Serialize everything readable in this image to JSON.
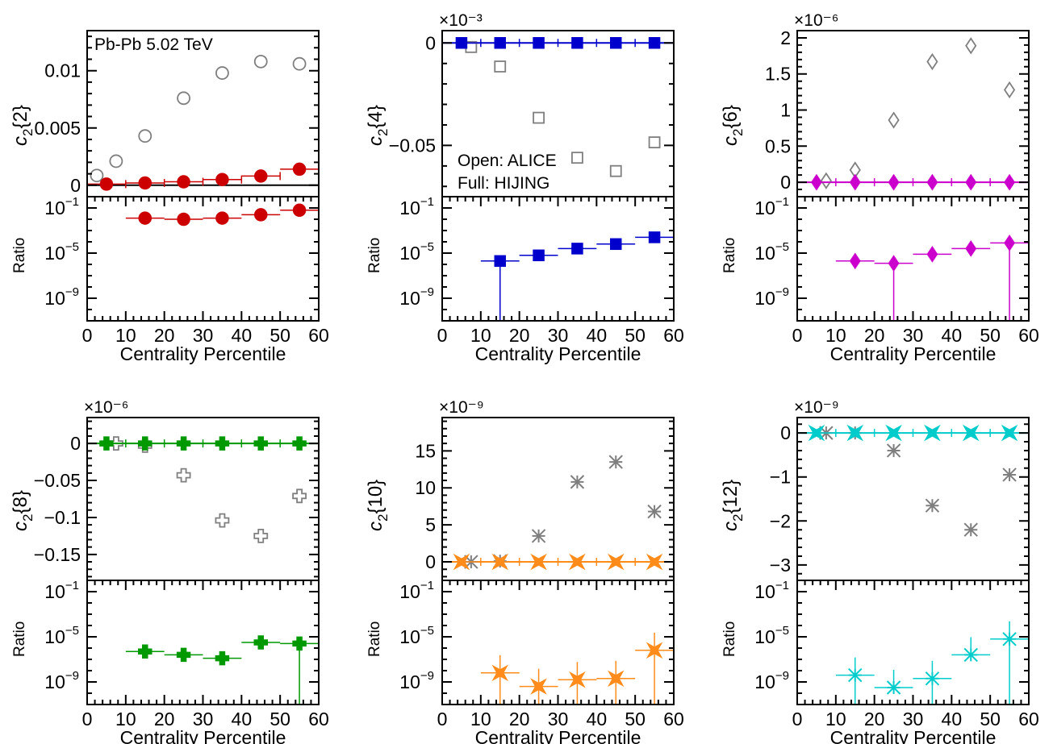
{
  "figure": {
    "system_label": "Pb-Pb 5.02 TeV",
    "legend_open": "Open: ALICE",
    "legend_full": "Full: HIJING"
  },
  "chart_data": [
    {
      "type": "scatter",
      "ylabel": "c_2{2}",
      "ratio_label": "Ratio",
      "xlabel": "Centrality Percentile",
      "multiplier_text": "",
      "xlim": [
        0,
        60
      ],
      "xticks": [
        0,
        10,
        20,
        30,
        40,
        50,
        60
      ],
      "ylim": [
        -0.001,
        0.0135
      ],
      "yticks": [
        0,
        0.005,
        0.01
      ],
      "ytick_labels": [
        "0",
        "0.005",
        "0.01"
      ],
      "ratio_ylim_exp": [
        -11,
        0
      ],
      "ratio_yticks_exp": [
        -9,
        -5,
        -1
      ],
      "zero_line": true,
      "line_color": "#000000",
      "series": [
        {
          "name": "ALICE",
          "marker": "circle-open",
          "color": "#7f7f7f",
          "x": [
            2.5,
            7.5,
            15,
            25,
            35,
            45,
            55
          ],
          "y": [
            0.00085,
            0.0021,
            0.0043,
            0.0076,
            0.0098,
            0.0108,
            0.0106
          ]
        },
        {
          "name": "HIJING",
          "marker": "circle",
          "color": "#cc0000",
          "x": [
            5,
            15,
            25,
            35,
            45,
            55
          ],
          "xerr": 5,
          "y": [
            0.0001,
            0.0002,
            0.0003,
            0.0005,
            0.0008,
            0.0014
          ]
        }
      ],
      "ratio": {
        "color": "#cc0000",
        "marker": "circle",
        "x": [
          15,
          25,
          35,
          45,
          55
        ],
        "xerr": 5,
        "log10": [
          -1.9,
          -2.0,
          -1.9,
          -1.6,
          -1.2
        ],
        "drop_to_floor": []
      }
    },
    {
      "type": "scatter",
      "ylabel": "c_2{4}",
      "ratio_label": "Ratio",
      "xlabel": "Centrality Percentile",
      "multiplier_text": "×10⁻³",
      "xlim": [
        0,
        60
      ],
      "xticks": [
        0,
        10,
        20,
        30,
        40,
        50,
        60
      ],
      "ylim": [
        -0.075,
        0.006
      ],
      "yticks": [
        -0.05,
        0
      ],
      "ytick_labels": [
        "−0.05",
        "0"
      ],
      "ratio_ylim_exp": [
        -11,
        0
      ],
      "ratio_yticks_exp": [
        -9,
        -5,
        -1
      ],
      "zero_line": true,
      "line_color": "#0000cc",
      "series": [
        {
          "name": "ALICE",
          "marker": "square-open",
          "color": "#7f7f7f",
          "x": [
            7.5,
            15,
            25,
            35,
            45,
            55
          ],
          "y": [
            -0.002,
            -0.0115,
            -0.0365,
            -0.056,
            -0.0625,
            -0.0485
          ]
        },
        {
          "name": "HIJING",
          "marker": "square",
          "color": "#0000cc",
          "x": [
            5,
            15,
            25,
            35,
            45,
            55
          ],
          "xerr": 5,
          "y": [
            0,
            0,
            0,
            0,
            0,
            0
          ]
        }
      ],
      "ratio": {
        "color": "#0000cc",
        "marker": "square",
        "x": [
          15,
          25,
          35,
          45,
          55
        ],
        "xerr": 5,
        "log10": [
          -5.7,
          -5.2,
          -4.6,
          -4.2,
          -3.6
        ],
        "drop_to_floor": [
          15
        ]
      }
    },
    {
      "type": "scatter",
      "ylabel": "c_2{6}",
      "ratio_label": "Ratio",
      "xlabel": "Centrality Percentile",
      "multiplier_text": "×10⁻⁶",
      "xlim": [
        0,
        60
      ],
      "xticks": [
        0,
        10,
        20,
        30,
        40,
        50,
        60
      ],
      "ylim": [
        -0.2,
        2.1
      ],
      "yticks": [
        0,
        0.5,
        1,
        1.5,
        2
      ],
      "ytick_labels": [
        "0",
        "0.5",
        "1",
        "1.5",
        "2"
      ],
      "ratio_ylim_exp": [
        -11,
        0
      ],
      "ratio_yticks_exp": [
        -9,
        -5,
        -1
      ],
      "zero_line": true,
      "line_color": "#cc00cc",
      "series": [
        {
          "name": "ALICE",
          "marker": "diamond-open",
          "color": "#7f7f7f",
          "x": [
            7.5,
            15,
            25,
            35,
            45,
            55
          ],
          "y": [
            0.02,
            0.17,
            0.86,
            1.67,
            1.89,
            1.28
          ]
        },
        {
          "name": "HIJING",
          "marker": "diamond",
          "color": "#cc00cc",
          "x": [
            5,
            15,
            25,
            35,
            45,
            55
          ],
          "xerr": 5,
          "y": [
            0,
            0,
            0,
            0,
            0,
            0
          ]
        }
      ],
      "ratio": {
        "color": "#cc00cc",
        "marker": "diamond",
        "x": [
          15,
          25,
          35,
          45,
          55
        ],
        "xerr": 5,
        "log10": [
          -5.7,
          -5.9,
          -5.1,
          -4.6,
          -4.1
        ],
        "drop_to_floor": [
          25,
          55
        ]
      }
    },
    {
      "type": "scatter",
      "ylabel": "c_2{8}",
      "ratio_label": "Ratio",
      "xlabel": "Centrality Percentile",
      "multiplier_text": "×10⁻⁶",
      "xlim": [
        0,
        60
      ],
      "xticks": [
        0,
        10,
        20,
        30,
        40,
        50,
        60
      ],
      "ylim": [
        -0.185,
        0.035
      ],
      "yticks": [
        -0.15,
        -0.1,
        -0.05,
        0
      ],
      "ytick_labels": [
        "−0.15",
        "−0.1",
        "−0.05",
        "0"
      ],
      "ratio_ylim_exp": [
        -11,
        0
      ],
      "ratio_yticks_exp": [
        -9,
        -5,
        -1
      ],
      "zero_line": true,
      "line_color": "#009900",
      "series": [
        {
          "name": "ALICE",
          "marker": "cross-open",
          "color": "#7f7f7f",
          "x": [
            7.5,
            15,
            25,
            35,
            45,
            55
          ],
          "y": [
            0,
            -0.003,
            -0.043,
            -0.104,
            -0.125,
            -0.071
          ]
        },
        {
          "name": "HIJING",
          "marker": "cross",
          "color": "#009900",
          "x": [
            5,
            15,
            25,
            35,
            45,
            55
          ],
          "xerr": 5,
          "y": [
            0,
            0,
            0,
            0,
            0,
            0
          ]
        }
      ],
      "ratio": {
        "color": "#009900",
        "marker": "cross",
        "x": [
          15,
          25,
          35,
          45,
          55
        ],
        "xerr": 5,
        "log10": [
          -6.3,
          -6.6,
          -6.9,
          -5.5,
          -5.6
        ],
        "drop_to_floor": [
          55
        ]
      }
    },
    {
      "type": "scatter",
      "ylabel": "c_2{10}",
      "ratio_label": "Ratio",
      "xlabel": "Centrality Percentile",
      "multiplier_text": "×10⁻⁹",
      "xlim": [
        0,
        60
      ],
      "xticks": [
        0,
        10,
        20,
        30,
        40,
        50,
        60
      ],
      "ylim": [
        -2.5,
        19.5
      ],
      "yticks": [
        0,
        5,
        10,
        15
      ],
      "ytick_labels": [
        "0",
        "5",
        "10",
        "15"
      ],
      "ratio_ylim_exp": [
        -11,
        0
      ],
      "ratio_yticks_exp": [
        -9,
        -5,
        -1
      ],
      "zero_line": true,
      "line_color": "#ff8c1a",
      "series": [
        {
          "name": "ALICE",
          "marker": "star-open",
          "color": "#7f7f7f",
          "x": [
            7.5,
            15,
            25,
            35,
            45,
            55
          ],
          "y": [
            0,
            0.1,
            3.5,
            10.8,
            13.5,
            6.8
          ]
        },
        {
          "name": "HIJING",
          "marker": "star",
          "color": "#ff8c1a",
          "x": [
            5,
            15,
            25,
            35,
            45,
            55
          ],
          "xerr": 5,
          "y": [
            0,
            0,
            0,
            0,
            0,
            0
          ]
        }
      ],
      "ratio": {
        "color": "#ff8c1a",
        "marker": "star",
        "x": [
          15,
          25,
          35,
          45,
          55
        ],
        "xerr": 5,
        "log10": [
          -8.2,
          -9.4,
          -8.8,
          -8.7,
          -6.2
        ],
        "drop_to_floor": [
          15,
          25,
          35,
          45,
          55
        ]
      }
    },
    {
      "type": "scatter",
      "ylabel": "c_2{12}",
      "ratio_label": "Ratio",
      "xlabel": "Centrality Percentile",
      "multiplier_text": "×10⁻⁹",
      "xlim": [
        0,
        60
      ],
      "xticks": [
        0,
        10,
        20,
        30,
        40,
        50,
        60
      ],
      "ylim": [
        -3.35,
        0.35
      ],
      "yticks": [
        -3,
        -2,
        -1,
        0
      ],
      "ytick_labels": [
        "−3",
        "−2",
        "−1",
        "0"
      ],
      "ratio_ylim_exp": [
        -11,
        0
      ],
      "ratio_yticks_exp": [
        -9,
        -5,
        -1
      ],
      "zero_line": true,
      "line_color": "#00cccc",
      "series": [
        {
          "name": "ALICE",
          "marker": "star-open",
          "color": "#7f7f7f",
          "x": [
            7.5,
            15,
            25,
            35,
            45,
            55
          ],
          "y": [
            0,
            0,
            -0.4,
            -1.65,
            -2.2,
            -0.95
          ]
        },
        {
          "name": "HIJING",
          "marker": "star",
          "color": "#00cccc",
          "x": [
            5,
            15,
            25,
            35,
            45,
            55
          ],
          "xerr": 5,
          "y": [
            0,
            0,
            0,
            0,
            0,
            0
          ]
        }
      ],
      "ratio": {
        "color": "#00cccc",
        "marker": "star",
        "x": [
          15,
          25,
          35,
          45,
          55
        ],
        "xerr": 5,
        "log10": [
          -8.4,
          -9.5,
          -8.7,
          -6.6,
          -5.2
        ],
        "drop_to_floor": [
          15,
          35,
          55
        ]
      }
    }
  ]
}
